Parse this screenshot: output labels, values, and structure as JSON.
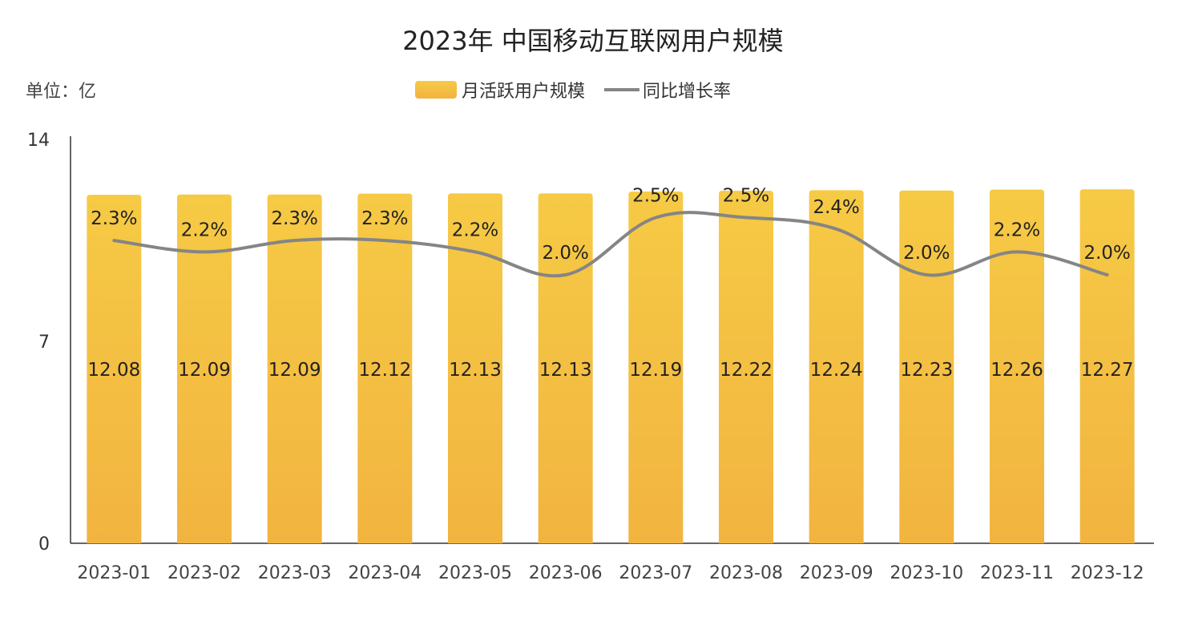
{
  "chart_data": {
    "type": "bar",
    "title": "2023年 中国移动互联网用户规模",
    "unit_label": "单位：亿",
    "categories": [
      "2023-01",
      "2023-02",
      "2023-03",
      "2023-04",
      "2023-05",
      "2023-06",
      "2023-07",
      "2023-08",
      "2023-09",
      "2023-10",
      "2023-11",
      "2023-12"
    ],
    "series": [
      {
        "name": "月活跃用户规模",
        "type": "bar",
        "values": [
          12.08,
          12.09,
          12.09,
          12.12,
          12.13,
          12.13,
          12.19,
          12.22,
          12.24,
          12.23,
          12.26,
          12.27
        ],
        "labels": [
          "12.08",
          "12.09",
          "12.09",
          "12.12",
          "12.13",
          "12.13",
          "12.19",
          "12.22",
          "12.24",
          "12.23",
          "12.26",
          "12.27"
        ],
        "color_top": "#f6ca45",
        "color_bottom": "#f2b440"
      },
      {
        "name": "同比增长率",
        "type": "line",
        "values": [
          2.3,
          2.2,
          2.3,
          2.3,
          2.2,
          2.0,
          2.5,
          2.5,
          2.4,
          2.0,
          2.2,
          2.0
        ],
        "labels": [
          "2.3%",
          "2.2%",
          "2.3%",
          "2.3%",
          "2.2%",
          "2.0%",
          "2.5%",
          "2.5%",
          "2.4%",
          "2.0%",
          "2.2%",
          "2.0%"
        ],
        "color": "#858585"
      }
    ],
    "y_axis": {
      "min": 0,
      "max": 14,
      "ticks": [
        "0",
        "7",
        "14"
      ]
    },
    "legend_position": "top-center",
    "grid": false
  }
}
